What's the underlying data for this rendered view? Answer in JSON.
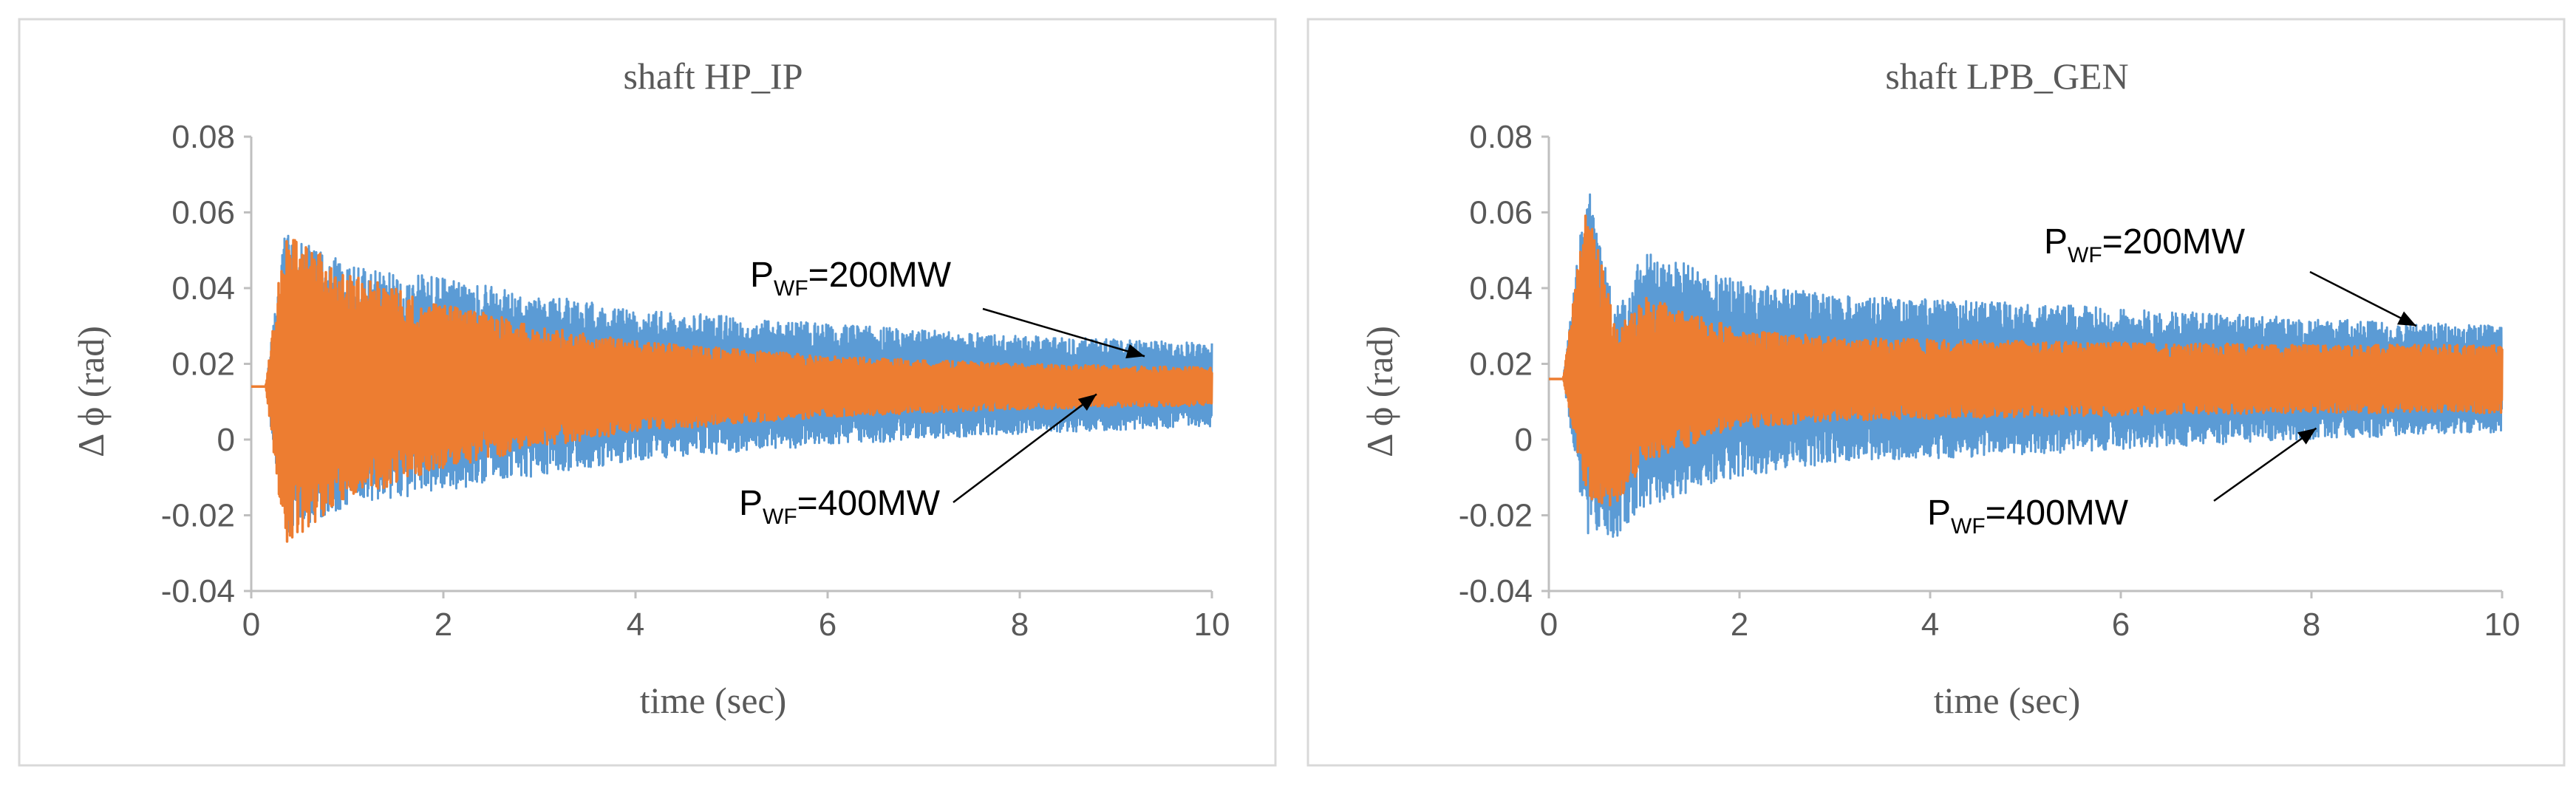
{
  "chart_data": [
    {
      "type": "line",
      "title": "shaft  HP_IP",
      "xlabel": "time (sec)",
      "ylabel": "Δ ϕ (rad)",
      "xlim": [
        0,
        10
      ],
      "ylim": [
        -0.04,
        0.08
      ],
      "x_ticks": [
        "0",
        "2",
        "4",
        "6",
        "8",
        "10"
      ],
      "y_ticks": [
        "-0.04",
        "-0.02",
        "0",
        "0.02",
        "0.04",
        "0.06",
        "0.08"
      ],
      "grid": false,
      "legend": "none",
      "series": [
        {
          "color": "#5b9bd5",
          "description_points": {
            "t": [
              0,
              0.15,
              0.35,
              1.0,
              2.0,
              3.0,
              4.0,
              6.0,
              8.0,
              10.0
            ],
            "mean": [
              0.014,
              0.014,
              0.0145,
              0.0145,
              0.0145,
              0.0145,
              0.0145,
              0.0145,
              0.0145,
              0.0145
            ],
            "amp": [
              0,
              0,
              0.04,
              0.032,
              0.028,
              0.024,
              0.02,
              0.016,
              0.013,
              0.011
            ]
          }
        },
        {
          "color": "#ed7d31",
          "description_points": {
            "t": [
              0,
              0.15,
              0.35,
              1.0,
              2.0,
              3.0,
              4.0,
              6.0,
              8.0,
              10.0
            ],
            "mean": [
              0.014,
              0.014,
              0.014,
              0.014,
              0.014,
              0.014,
              0.014,
              0.014,
              0.014,
              0.014
            ],
            "amp": [
              0,
              0,
              0.042,
              0.03,
              0.022,
              0.016,
              0.012,
              0.008,
              0.006,
              0.005
            ]
          }
        }
      ],
      "annotations": [
        {
          "text_main": "P",
          "text_sub": "WF",
          "text_tail": "=200MW",
          "target": {
            "x": 9.3,
            "y": 0.022
          }
        },
        {
          "text_main": "P",
          "text_sub": "WF",
          "text_tail": "=400MW",
          "target": {
            "x": 8.8,
            "y": 0.012
          }
        }
      ]
    },
    {
      "type": "line",
      "title": "shaft  LPB_GEN",
      "xlabel": "time (sec)",
      "ylabel": "Δ ϕ (rad)",
      "xlim": [
        0,
        10
      ],
      "ylim": [
        -0.04,
        0.08
      ],
      "x_ticks": [
        "0",
        "2",
        "4",
        "6",
        "8",
        "10"
      ],
      "y_ticks": [
        "-0.04",
        "-0.02",
        "0",
        "0.02",
        "0.04",
        "0.06",
        "0.08"
      ],
      "grid": false,
      "legend": "none",
      "series": [
        {
          "color": "#5b9bd5",
          "description_points": {
            "t": [
              0,
              0.15,
              0.4,
              0.7,
              1.0,
              2.0,
              3.0,
              5.0,
              8.0,
              10.0
            ],
            "mean": [
              0.016,
              0.016,
              0.022,
              0.004,
              0.016,
              0.016,
              0.016,
              0.016,
              0.016,
              0.016
            ],
            "amp": [
              0,
              0,
              0.048,
              0.03,
              0.034,
              0.026,
              0.022,
              0.02,
              0.016,
              0.014
            ]
          }
        },
        {
          "color": "#ed7d31",
          "description_points": {
            "t": [
              0,
              0.15,
              0.4,
              0.7,
              1.0,
              2.0,
              3.0,
              5.0,
              8.0,
              10.0
            ],
            "mean": [
              0.016,
              0.016,
              0.024,
              0.006,
              0.016,
              0.016,
              0.016,
              0.016,
              0.016,
              0.016
            ],
            "amp": [
              0,
              0,
              0.04,
              0.024,
              0.022,
              0.013,
              0.011,
              0.01,
              0.009,
              0.009
            ]
          }
        }
      ],
      "annotations": [
        {
          "text_main": "P",
          "text_sub": "WF",
          "text_tail": "=200MW",
          "target": {
            "x": 9.1,
            "y": 0.03
          }
        },
        {
          "text_main": "P",
          "text_sub": "WF",
          "text_tail": "=400MW",
          "target": {
            "x": 8.05,
            "y": 0.003
          }
        }
      ]
    }
  ]
}
